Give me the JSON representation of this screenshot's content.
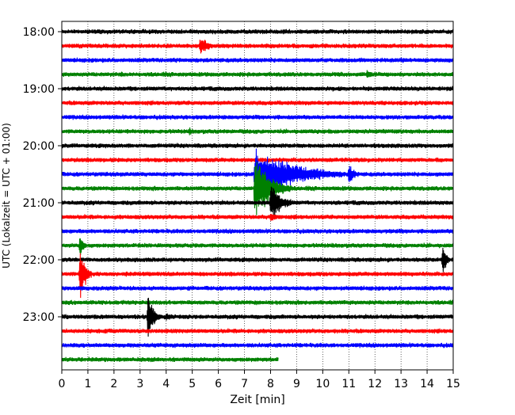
{
  "chart_data": {
    "type": "line",
    "subtype": "helicorder",
    "xlabel": "Zeit  [min]",
    "ylabel": "UTC (Lokalzeit = UTC + 01:00)",
    "xlim": [
      0,
      15
    ],
    "x_ticks": [
      "0",
      "1",
      "2",
      "3",
      "4",
      "5",
      "6",
      "7",
      "8",
      "9",
      "10",
      "11",
      "12",
      "13",
      "14",
      "15"
    ],
    "y_ticks": [
      {
        "label": "18:00",
        "row": 0
      },
      {
        "label": "19:00",
        "row": 4
      },
      {
        "label": "20:00",
        "row": 8
      },
      {
        "label": "21:00",
        "row": 12
      },
      {
        "label": "22:00",
        "row": 16
      },
      {
        "label": "23:00",
        "row": 20
      }
    ],
    "rows_per_hour": 4,
    "minutes_per_row": 15,
    "row_count": 24,
    "last_row_end_minute": 8.3,
    "grid": "vertical dotted at every minute",
    "trace_colors": [
      "#000000",
      "#ff0000",
      "#0000ff",
      "#008000"
    ],
    "noise_amplitude_rows": 0.2,
    "events": [
      {
        "row": 1,
        "minute": 5.3,
        "amplitude_rows": 0.75,
        "duration_min": 0.9
      },
      {
        "row": 3,
        "minute": 2.3,
        "amplitude_rows": 0.3,
        "duration_min": 0.4
      },
      {
        "row": 3,
        "minute": 11.7,
        "amplitude_rows": 0.55,
        "duration_min": 0.4
      },
      {
        "row": 7,
        "minute": 4.9,
        "amplitude_rows": 0.4,
        "duration_min": 0.3
      },
      {
        "row": 10,
        "minute": 7.4,
        "amplitude_rows": 2.2,
        "duration_min": 3.5
      },
      {
        "row": 10,
        "minute": 11.0,
        "amplitude_rows": 0.9,
        "duration_min": 0.6
      },
      {
        "row": 11,
        "minute": 7.4,
        "amplitude_rows": 2.8,
        "duration_min": 1.4
      },
      {
        "row": 12,
        "minute": 8.0,
        "amplitude_rows": 1.6,
        "duration_min": 1.0
      },
      {
        "row": 13,
        "minute": 8.0,
        "amplitude_rows": 0.5,
        "duration_min": 0.7
      },
      {
        "row": 15,
        "minute": 0.7,
        "amplitude_rows": 1.2,
        "duration_min": 0.3
      },
      {
        "row": 16,
        "minute": 14.6,
        "amplitude_rows": 1.4,
        "duration_min": 0.35
      },
      {
        "row": 17,
        "minute": 0.7,
        "amplitude_rows": 2.5,
        "duration_min": 0.45
      },
      {
        "row": 19,
        "minute": 11.8,
        "amplitude_rows": 0.3,
        "duration_min": 0.2
      },
      {
        "row": 20,
        "minute": 3.3,
        "amplitude_rows": 2.2,
        "duration_min": 0.5
      },
      {
        "row": 20,
        "minute": 4.0,
        "amplitude_rows": 0.4,
        "duration_min": 0.8
      }
    ]
  }
}
